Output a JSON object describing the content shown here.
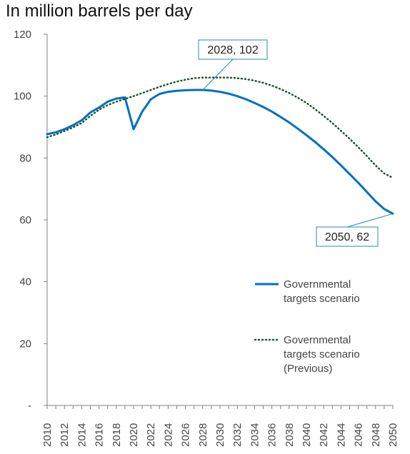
{
  "chart_data": {
    "type": "line",
    "title": "In million barrels per day",
    "xlabel": "",
    "ylabel": "",
    "x_range": [
      2010,
      2050
    ],
    "ylim": [
      0,
      120
    ],
    "y_ticks": [
      {
        "value": 0,
        "label": "-"
      },
      {
        "value": 20,
        "label": "20"
      },
      {
        "value": 40,
        "label": "40"
      },
      {
        "value": 60,
        "label": "60"
      },
      {
        "value": 80,
        "label": "80"
      },
      {
        "value": 100,
        "label": "100"
      },
      {
        "value": 120,
        "label": "120"
      }
    ],
    "x_ticks": [
      "2010",
      "2012",
      "2014",
      "2016",
      "2018",
      "2020",
      "2022",
      "2024",
      "2026",
      "2028",
      "2030",
      "2032",
      "2034",
      "2036",
      "2038",
      "2040",
      "2042",
      "2044",
      "2046",
      "2048",
      "2050"
    ],
    "grid": false,
    "legend_position": "right",
    "series": [
      {
        "name": "Governmental targets scenario",
        "style": "solid",
        "color": "#0070C0",
        "legend_lines": [
          "Governmental",
          "targets scenario"
        ],
        "x": [
          2010,
          2011,
          2012,
          2013,
          2014,
          2015,
          2016,
          2017,
          2018,
          2019,
          2020,
          2021,
          2022,
          2023,
          2024,
          2025,
          2026,
          2027,
          2028,
          2029,
          2030,
          2031,
          2032,
          2033,
          2034,
          2035,
          2036,
          2037,
          2038,
          2039,
          2040,
          2041,
          2042,
          2043,
          2044,
          2045,
          2046,
          2047,
          2048,
          2049,
          2050
        ],
        "values": [
          87.7,
          88.3,
          89.3,
          90.6,
          92.2,
          94.7,
          96.3,
          98.2,
          99.2,
          99.6,
          89.3,
          95.0,
          99.0,
          100.7,
          101.4,
          101.7,
          101.9,
          102.0,
          102.0,
          101.8,
          101.4,
          100.8,
          100.0,
          99.0,
          97.8,
          96.5,
          95.0,
          93.3,
          91.5,
          89.5,
          87.4,
          85.2,
          82.8,
          80.3,
          77.6,
          74.8,
          72.0,
          69.0,
          66.0,
          63.5,
          62.0
        ]
      },
      {
        "name": "Governmental targets scenario (Previous)",
        "style": "dotted",
        "color": "#1E5631",
        "legend_lines": [
          "Governmental",
          "targets scenario",
          "(Previous)"
        ],
        "x": [
          2010,
          2011,
          2012,
          2013,
          2014,
          2015,
          2016,
          2017,
          2018,
          2019,
          2020,
          2021,
          2022,
          2023,
          2024,
          2025,
          2026,
          2027,
          2028,
          2029,
          2030,
          2031,
          2032,
          2033,
          2034,
          2035,
          2036,
          2037,
          2038,
          2039,
          2040,
          2041,
          2042,
          2043,
          2044,
          2045,
          2046,
          2047,
          2048,
          2049,
          2050
        ],
        "values": [
          86.7,
          87.6,
          88.7,
          89.9,
          91.3,
          93.6,
          95.6,
          97.1,
          98.2,
          99.1,
          100.0,
          101.0,
          102.0,
          103.0,
          103.9,
          104.7,
          105.3,
          105.8,
          106.0,
          106.0,
          106.0,
          106.0,
          105.8,
          105.5,
          105.0,
          104.3,
          103.4,
          102.3,
          101.0,
          99.5,
          97.8,
          95.8,
          93.6,
          91.3,
          88.8,
          86.2,
          83.5,
          80.6,
          77.6,
          75.0,
          73.6
        ]
      }
    ],
    "annotations": [
      {
        "label": "2028, 102",
        "x": 2028,
        "y": 102
      },
      {
        "label": "2050, 62",
        "x": 2050,
        "y": 62
      }
    ]
  }
}
